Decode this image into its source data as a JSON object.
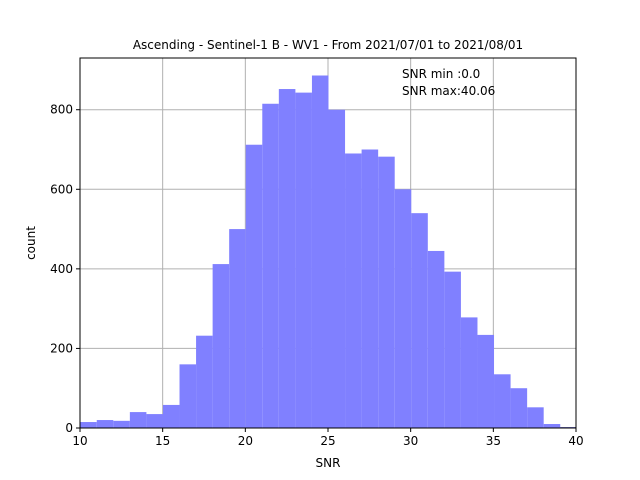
{
  "chart_data": {
    "type": "bar",
    "title": "Ascending - Sentinel-1 B - WV1 - From 2021/07/01 to 2021/08/01",
    "xlabel": "SNR",
    "ylabel": "count",
    "xlim": [
      10,
      40
    ],
    "ylim": [
      0,
      930
    ],
    "grid": true,
    "x_ticks": [
      10,
      15,
      20,
      25,
      30,
      35,
      40
    ],
    "y_ticks": [
      0,
      200,
      400,
      600,
      800
    ],
    "bar_color": "#8080ff",
    "bin_edges": [
      0.0,
      1.0012,
      2.0024,
      3.0036,
      4.0048,
      5.006,
      6.0072,
      7.0084,
      8.0096,
      9.0108,
      10.012,
      11.0132,
      12.0144,
      13.0156,
      14.0168,
      15.018,
      16.0192,
      17.0204,
      18.0216,
      19.0228,
      20.024,
      21.0252,
      22.0264,
      23.0276,
      24.0288,
      25.03,
      26.0312,
      27.0324,
      28.0336,
      29.0348,
      30.036,
      31.0372,
      32.0384,
      33.0396,
      34.0408,
      35.042,
      36.0432,
      37.0444,
      38.0456,
      39.0468,
      40.048
    ],
    "values": [
      0,
      0,
      0,
      0,
      0,
      0,
      0,
      0,
      0,
      0,
      15,
      20,
      18,
      40,
      35,
      58,
      160,
      232,
      412,
      500,
      712,
      815,
      852,
      843,
      886,
      800,
      690,
      700,
      682,
      600,
      540,
      445,
      393,
      278,
      234,
      135,
      100,
      52,
      10,
      2
    ],
    "annotations": [
      "SNR min :0.0",
      "SNR max:40.06"
    ]
  }
}
